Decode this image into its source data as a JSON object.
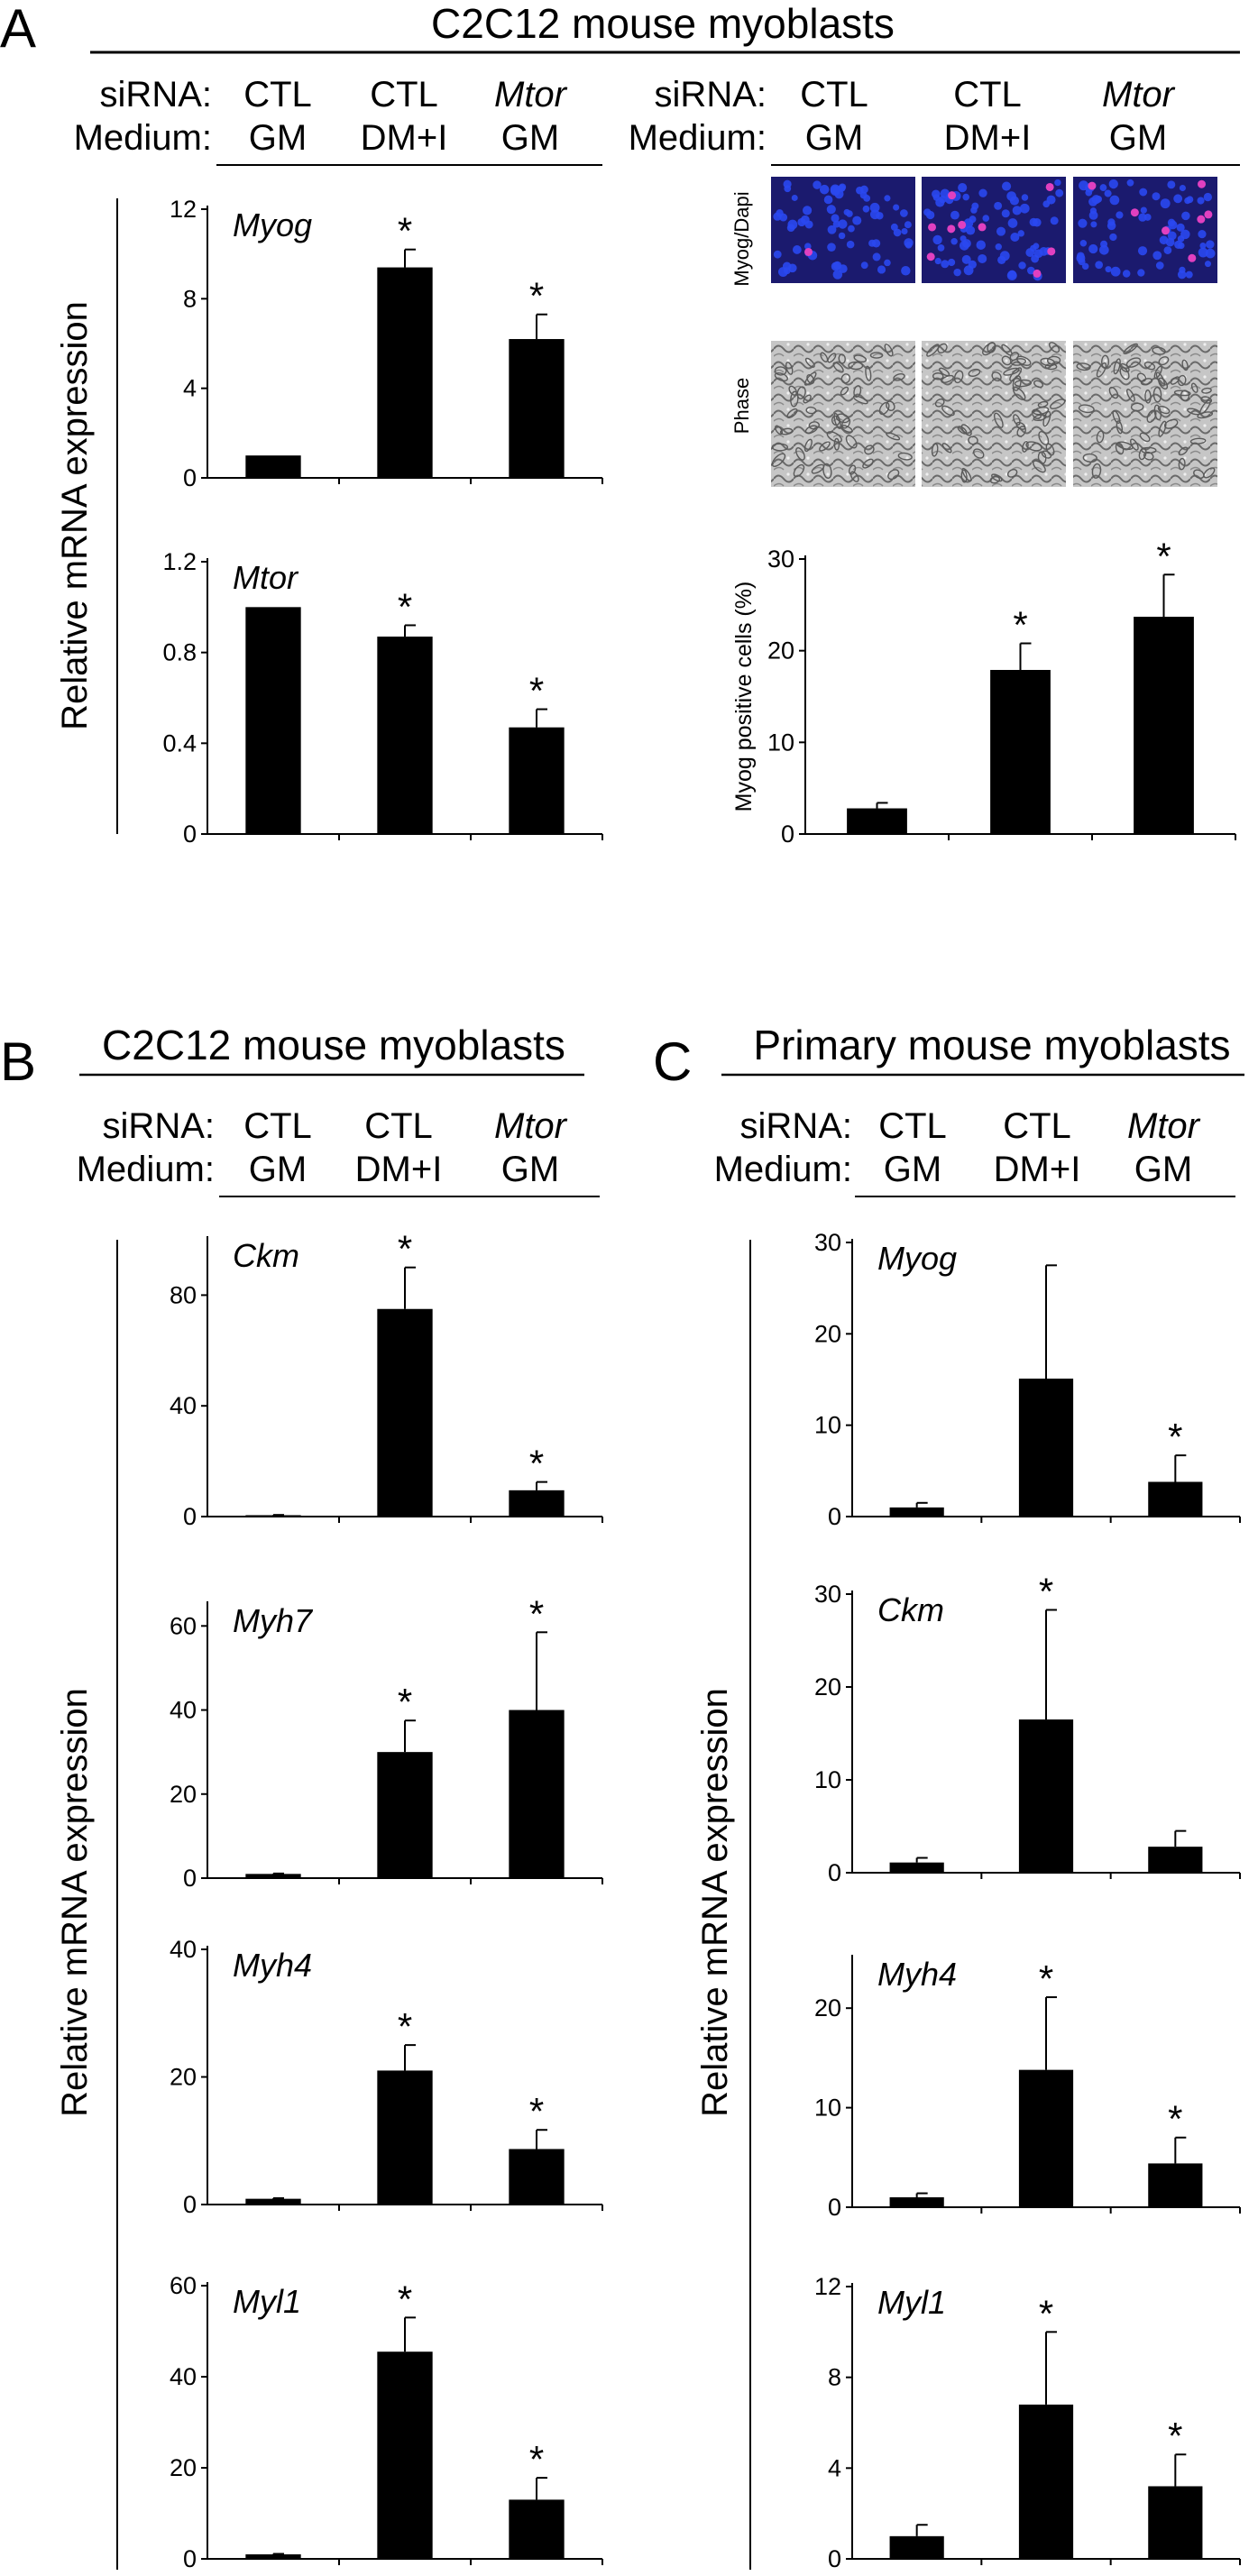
{
  "panels": {
    "A": {
      "letter": "A",
      "title": "C2C12 mouse myoblasts",
      "ylabel": "Relative mRNA expression",
      "image_labels": [
        "Myog/Dapi",
        "Phase"
      ]
    },
    "B": {
      "letter": "B",
      "title": "C2C12 mouse myoblasts",
      "ylabel": "Relative mRNA expression"
    },
    "C": {
      "letter": "C",
      "title": "Primary mouse myoblasts",
      "ylabel": "Relative mRNA expression"
    }
  },
  "treatments": {
    "siRNA_label": "siRNA:",
    "medium_label": "Medium:",
    "siRNA": [
      "CTL",
      "CTL",
      "Mtor"
    ],
    "medium": [
      "GM",
      "DM+I",
      "GM"
    ]
  },
  "colors": {
    "bar": "#000000",
    "nuclei_blue": "#2a48f0",
    "myog_pink": "#e040c0",
    "phase_gray": "#bdbdbd"
  },
  "chart_data": [
    {
      "id": "A-Myog",
      "type": "bar",
      "gene": "Myog",
      "categories": [
        "CTL GM",
        "CTL DM+I",
        "Mtor GM"
      ],
      "values": [
        1.0,
        9.4,
        6.2
      ],
      "errors": [
        0.0,
        0.8,
        1.1
      ],
      "significant": [
        false,
        true,
        true
      ],
      "ylim": [
        0,
        12
      ],
      "yticks": [
        "0",
        "4",
        "8",
        "12"
      ]
    },
    {
      "id": "A-Mtor",
      "type": "bar",
      "gene": "Mtor",
      "categories": [
        "CTL GM",
        "CTL DM+I",
        "Mtor GM"
      ],
      "values": [
        1.0,
        0.87,
        0.47
      ],
      "errors": [
        0.0,
        0.05,
        0.08
      ],
      "significant": [
        false,
        true,
        true
      ],
      "ylim": [
        0,
        1.2
      ],
      "yticks": [
        "0",
        "0.4",
        "0.8",
        "1.2"
      ]
    },
    {
      "id": "A-MyogPos",
      "type": "bar",
      "ylabel": "Myog positive cells (%)",
      "categories": [
        "CTL GM",
        "CTL DM+I",
        "Mtor GM"
      ],
      "values": [
        2.8,
        17.9,
        23.7
      ],
      "errors": [
        0.6,
        2.9,
        4.6
      ],
      "significant": [
        false,
        true,
        true
      ],
      "ylim": [
        0,
        30
      ],
      "yticks": [
        "0",
        "10",
        "20",
        "30"
      ]
    },
    {
      "id": "B-Ckm",
      "type": "bar",
      "gene": "Ckm",
      "categories": [
        "CTL GM",
        "CTL DM+I",
        "Mtor GM"
      ],
      "values": [
        0.5,
        75,
        9.5
      ],
      "errors": [
        0.1,
        15,
        3
      ],
      "significant": [
        false,
        true,
        true
      ],
      "ylim": [
        0,
        100
      ],
      "yticks": [
        "0",
        "40",
        "80"
      ]
    },
    {
      "id": "B-Myh7",
      "type": "bar",
      "gene": "Myh7",
      "categories": [
        "CTL GM",
        "CTL DM+I",
        "Mtor GM"
      ],
      "values": [
        1.0,
        30,
        40
      ],
      "errors": [
        0.1,
        7.5,
        18.5
      ],
      "significant": [
        false,
        true,
        true
      ],
      "ylim": [
        0,
        65
      ],
      "yticks": [
        "0",
        "20",
        "40",
        "60"
      ]
    },
    {
      "id": "B-Myh4",
      "type": "bar",
      "gene": "Myh4",
      "categories": [
        "CTL GM",
        "CTL DM+I",
        "Mtor GM"
      ],
      "values": [
        0.9,
        21,
        8.7
      ],
      "errors": [
        0.1,
        4,
        3
      ],
      "significant": [
        false,
        true,
        true
      ],
      "ylim": [
        0,
        40
      ],
      "yticks": [
        "0",
        "20",
        "40"
      ]
    },
    {
      "id": "B-Myl1",
      "type": "bar",
      "gene": "Myl1",
      "categories": [
        "CTL GM",
        "CTL DM+I",
        "Mtor GM"
      ],
      "values": [
        1.0,
        45.5,
        13
      ],
      "errors": [
        0.1,
        7.5,
        4.8
      ],
      "significant": [
        false,
        true,
        true
      ],
      "ylim": [
        0,
        60
      ],
      "yticks": [
        "0",
        "20",
        "40",
        "60"
      ]
    },
    {
      "id": "C-Myog",
      "type": "bar",
      "gene": "Myog",
      "categories": [
        "CTL GM",
        "CTL DM+I",
        "Mtor GM"
      ],
      "values": [
        1.0,
        15.1,
        3.8
      ],
      "errors": [
        0.5,
        12.4,
        2.9
      ],
      "significant": [
        false,
        false,
        true
      ],
      "ylim": [
        0,
        30
      ],
      "yticks": [
        "0",
        "10",
        "20",
        "30"
      ]
    },
    {
      "id": "C-Ckm",
      "type": "bar",
      "gene": "Ckm",
      "categories": [
        "CTL GM",
        "CTL DM+I",
        "Mtor GM"
      ],
      "values": [
        1.1,
        16.5,
        2.8
      ],
      "errors": [
        0.5,
        11.8,
        1.7
      ],
      "significant": [
        false,
        true,
        false
      ],
      "ylim": [
        0,
        30
      ],
      "yticks": [
        "0",
        "10",
        "20",
        "30"
      ]
    },
    {
      "id": "C-Myh4",
      "type": "bar",
      "gene": "Myh4",
      "categories": [
        "CTL GM",
        "CTL DM+I",
        "Mtor GM"
      ],
      "values": [
        1.0,
        13.8,
        4.4
      ],
      "errors": [
        0.4,
        7.3,
        2.6
      ],
      "significant": [
        false,
        true,
        true
      ],
      "ylim": [
        0,
        25
      ],
      "yticks": [
        "0",
        "10",
        "20"
      ]
    },
    {
      "id": "C-Myl1",
      "type": "bar",
      "gene": "Myl1",
      "categories": [
        "CTL GM",
        "CTL DM+I",
        "Mtor GM"
      ],
      "values": [
        1.0,
        6.8,
        3.2
      ],
      "errors": [
        0.5,
        3.2,
        1.4
      ],
      "significant": [
        false,
        true,
        true
      ],
      "ylim": [
        0,
        12
      ],
      "yticks": [
        "0",
        "4",
        "8",
        "12"
      ]
    }
  ]
}
